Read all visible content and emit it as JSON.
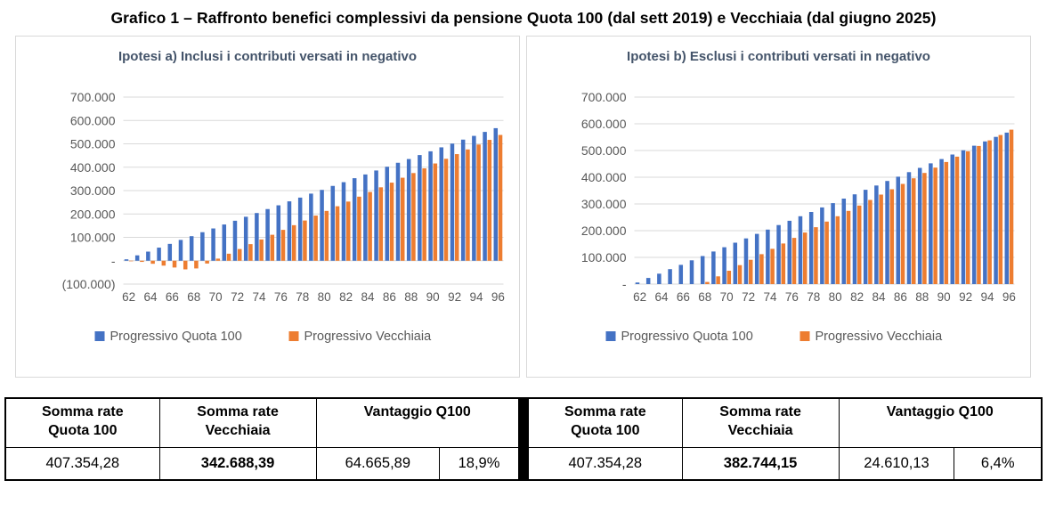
{
  "page_title": "Grafico 1 – Raffronto benefici complessivi da pensione Quota 100 (dal sett 2019) e Vecchiaia (dal giugno 2025)",
  "colors": {
    "quota100": "#4472C4",
    "vecchiaia": "#ED7D31",
    "chart_title": "#44546A",
    "axis_text": "#595959",
    "gridline": "#D9D9D9",
    "panel_border": "#D9D9D9",
    "table_border": "#000000"
  },
  "chart_data": [
    {
      "type": "bar",
      "title": "Ipotesi a) Inclusi i contributi versati in negativo",
      "categories": [
        62,
        63,
        64,
        65,
        66,
        67,
        68,
        69,
        70,
        71,
        72,
        73,
        74,
        75,
        76,
        77,
        78,
        79,
        80,
        81,
        82,
        83,
        84,
        85,
        86,
        87,
        88,
        89,
        90,
        91,
        92,
        93,
        94,
        95,
        96
      ],
      "x_tick_labels": [
        "62",
        "64",
        "66",
        "68",
        "70",
        "72",
        "74",
        "76",
        "78",
        "80",
        "82",
        "84",
        "86",
        "88",
        "90",
        "92",
        "94",
        "96"
      ],
      "series": [
        {
          "name": "Progressivo Quota 100",
          "color_key": "quota100",
          "values": [
            6000,
            23000,
            39000,
            56000,
            72000,
            89000,
            105000,
            122000,
            138000,
            155000,
            171000,
            188000,
            204000,
            221000,
            237000,
            254000,
            270000,
            287000,
            303000,
            320000,
            336000,
            353000,
            369000,
            386000,
            402000,
            419000,
            435000,
            452000,
            468000,
            485000,
            501000,
            518000,
            534000,
            551000,
            567000
          ]
        },
        {
          "name": "Progressivo Vecchiaia",
          "color_key": "vecchiaia",
          "values": [
            -1000,
            -5000,
            -13000,
            -21000,
            -29000,
            -37000,
            -33000,
            -12000,
            9000,
            30000,
            50000,
            71000,
            91000,
            111000,
            132000,
            152000,
            172000,
            193000,
            213000,
            233000,
            253000,
            274000,
            294000,
            314000,
            334000,
            355000,
            375000,
            395000,
            416000,
            436000,
            456000,
            476000,
            497000,
            517000,
            538000
          ]
        }
      ],
      "ylim": [
        -100000,
        700000
      ],
      "ytick_step": 100000,
      "ytick_labels": [
        "700.000",
        "600.000",
        "500.000",
        "400.000",
        "300.000",
        "200.000",
        "100.000",
        "-",
        "(100.000)"
      ],
      "grid": true,
      "legend_position": "bottom"
    },
    {
      "type": "bar",
      "title": "Ipotesi b) Esclusi i contributi versati in negativo",
      "categories": [
        62,
        63,
        64,
        65,
        66,
        67,
        68,
        69,
        70,
        71,
        72,
        73,
        74,
        75,
        76,
        77,
        78,
        79,
        80,
        81,
        82,
        83,
        84,
        85,
        86,
        87,
        88,
        89,
        90,
        91,
        92,
        93,
        94,
        95,
        96
      ],
      "x_tick_labels": [
        "62",
        "64",
        "66",
        "68",
        "70",
        "72",
        "74",
        "76",
        "78",
        "80",
        "82",
        "84",
        "86",
        "88",
        "90",
        "92",
        "94",
        "96"
      ],
      "series": [
        {
          "name": "Progressivo Quota 100",
          "color_key": "quota100",
          "values": [
            6000,
            23000,
            39000,
            56000,
            72000,
            89000,
            105000,
            122000,
            138000,
            155000,
            171000,
            188000,
            204000,
            221000,
            237000,
            254000,
            270000,
            287000,
            303000,
            320000,
            336000,
            353000,
            369000,
            386000,
            402000,
            419000,
            435000,
            452000,
            468000,
            485000,
            501000,
            518000,
            534000,
            551000,
            567000
          ]
        },
        {
          "name": "Progressivo Vecchiaia",
          "color_key": "vecchiaia",
          "values": [
            0,
            0,
            0,
            0,
            0,
            0,
            8000,
            29000,
            50000,
            71000,
            91000,
            112000,
            132000,
            152000,
            173000,
            193000,
            213000,
            234000,
            254000,
            274000,
            294000,
            315000,
            335000,
            355000,
            375000,
            396000,
            416000,
            436000,
            457000,
            477000,
            497000,
            517000,
            538000,
            558000,
            578000
          ]
        }
      ],
      "ylim": [
        0,
        700000
      ],
      "ytick_step": 100000,
      "ytick_labels": [
        "700.000",
        "600.000",
        "500.000",
        "400.000",
        "300.000",
        "200.000",
        "100.000",
        "-"
      ],
      "grid": true,
      "legend_position": "bottom"
    }
  ],
  "summary_tables": [
    {
      "headers": [
        {
          "l1": "Somma rate",
          "l2": "Quota 100"
        },
        {
          "l1": "Somma rate",
          "l2": "Vecchiaia"
        },
        {
          "l1": "Vantaggio Q100",
          "l2": ""
        }
      ],
      "values": {
        "quota100": "407.354,28",
        "vecchiaia": "342.688,39",
        "vantaggio_abs": "64.665,89",
        "vantaggio_pct": "18,9%"
      }
    },
    {
      "headers": [
        {
          "l1": "Somma rate",
          "l2": "Quota 100"
        },
        {
          "l1": "Somma rate",
          "l2": "Vecchiaia"
        },
        {
          "l1": "Vantaggio Q100",
          "l2": ""
        }
      ],
      "values": {
        "quota100": "407.354,28",
        "vecchiaia": "382.744,15",
        "vantaggio_abs": "24.610,13",
        "vantaggio_pct": "6,4%"
      }
    }
  ]
}
